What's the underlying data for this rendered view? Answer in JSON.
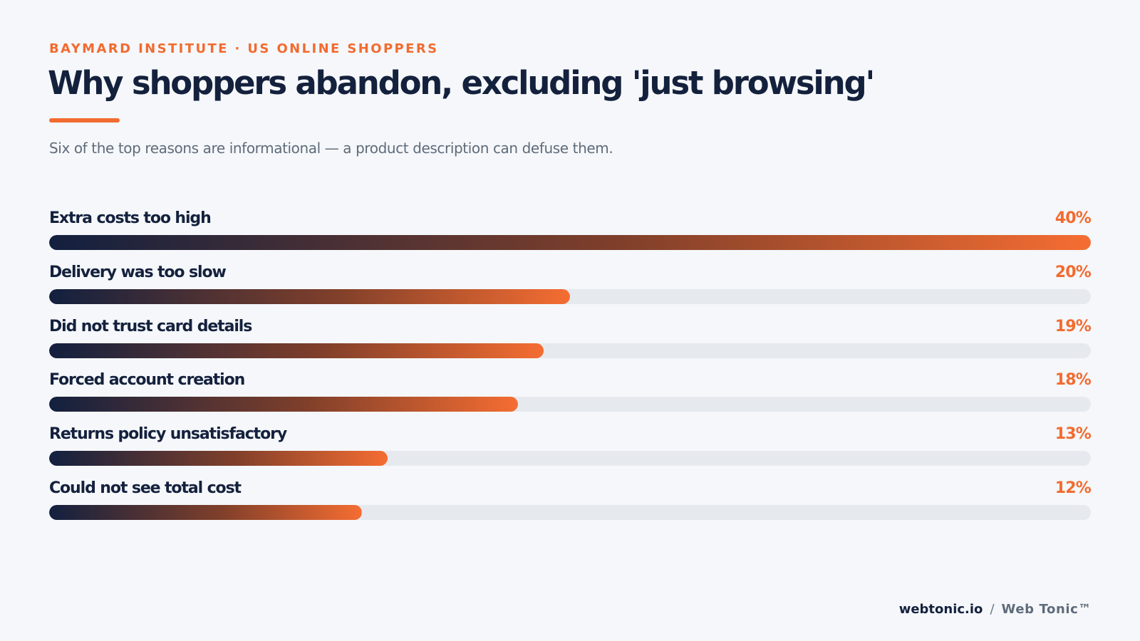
{
  "header": {
    "kicker": "BAYMARD INSTITUTE · US ONLINE SHOPPERS",
    "title": "Why shoppers abandon, excluding 'just browsing'",
    "subtitle": "Six of the top reasons are informational — a product description can defuse them."
  },
  "chart_data": {
    "type": "bar",
    "orientation": "horizontal",
    "categories": [
      "Extra costs too high",
      "Delivery was too slow",
      "Did not trust card details",
      "Forced account creation",
      "Returns policy unsatisfactory",
      "Could not see total cost"
    ],
    "values": [
      40,
      20,
      19,
      18,
      13,
      12
    ],
    "value_labels": [
      "40%",
      "20%",
      "19%",
      "18%",
      "13%",
      "12%"
    ],
    "xlim": [
      0,
      40
    ],
    "grid": false,
    "colors": {
      "bar_gradient_start": "#12203f",
      "bar_gradient_end": "#f56d32",
      "track": "#e6e9ee",
      "accent": "#f26b30",
      "text": "#14213d"
    }
  },
  "footer": {
    "site": "webtonic.io",
    "separator": "/",
    "brand": "Web Tonic™"
  }
}
